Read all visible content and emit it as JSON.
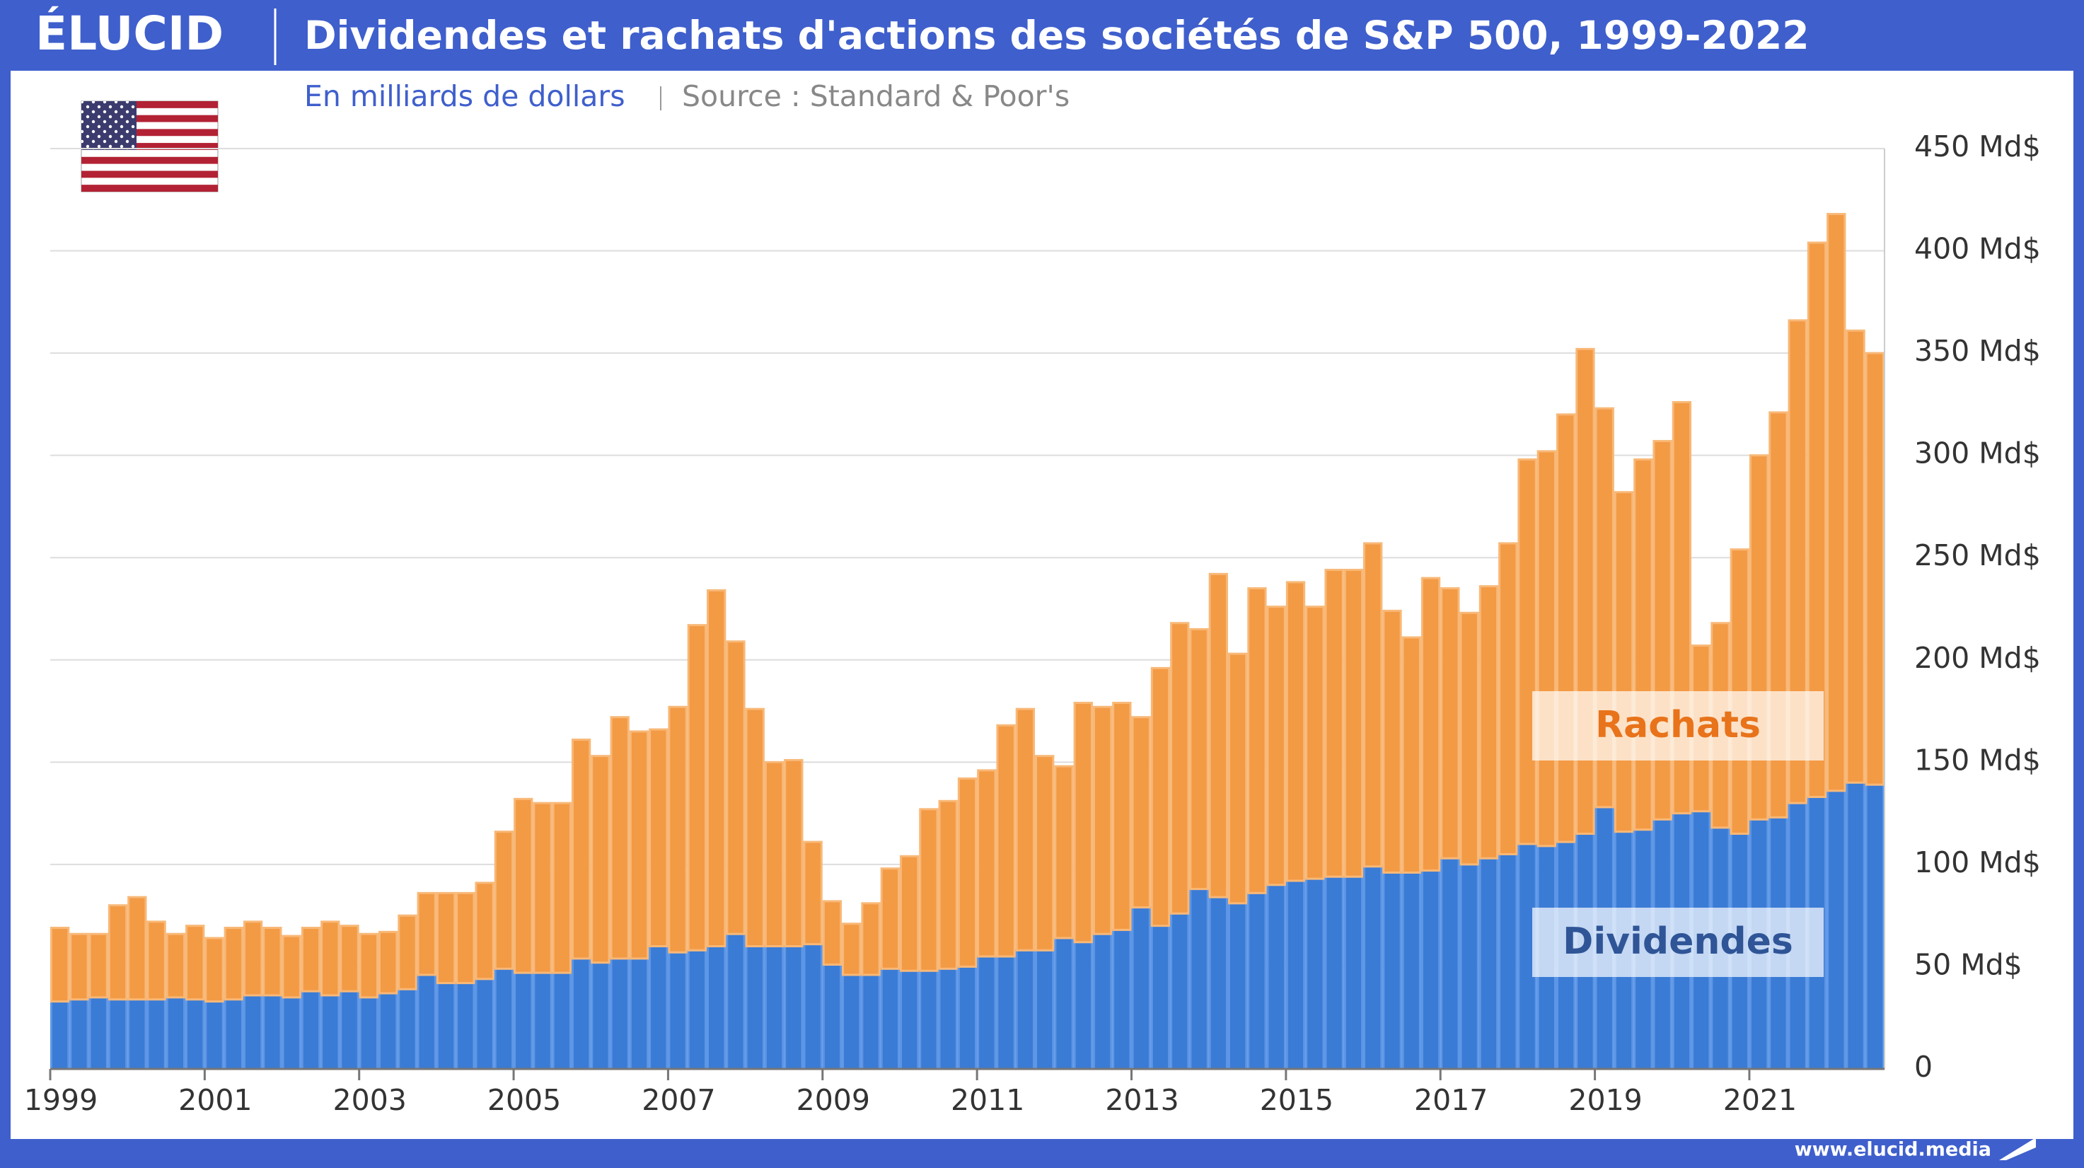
{
  "brand": "ÉLUCID",
  "footer": "www.elucid.media",
  "chart_data": {
    "type": "stacked_bar",
    "title": "Dividendes et rachats d'actions des sociétés de S&P 500, 1999-2022",
    "subtitle": "En milliards de dollars",
    "source": "Source : Standard & Poor's",
    "categories": [
      "1999",
      null,
      null,
      null,
      null,
      null,
      null,
      null,
      "2001",
      null,
      null,
      null,
      null,
      null,
      null,
      null,
      "2003",
      null,
      null,
      null,
      null,
      null,
      null,
      null,
      "2005",
      null,
      null,
      null,
      null,
      null,
      null,
      null,
      "2007",
      null,
      null,
      null,
      null,
      null,
      null,
      null,
      "2009",
      null,
      null,
      null,
      null,
      null,
      null,
      null,
      "2011",
      null,
      null,
      null,
      null,
      null,
      null,
      null,
      "2013",
      null,
      null,
      null,
      null,
      null,
      null,
      null,
      "2015",
      null,
      null,
      null,
      null,
      null,
      null,
      null,
      "2017",
      null,
      null,
      null,
      null,
      null,
      null,
      null,
      "2019",
      null,
      null,
      null,
      null,
      null,
      null,
      null,
      "2021",
      null,
      null,
      null,
      null,
      null,
      null
    ],
    "series": [
      {
        "name": "Dividendes",
        "color": "#3a7bd5",
        "values": [
          33,
          34,
          35,
          34,
          34,
          34,
          35,
          34,
          33,
          34,
          36,
          36,
          35,
          38,
          36,
          38,
          35,
          37,
          39,
          46,
          42,
          42,
          44,
          49,
          47,
          47,
          47,
          54,
          52,
          54,
          54,
          60,
          57,
          58,
          60,
          66,
          60,
          60,
          60,
          61,
          51,
          46,
          46,
          49,
          48,
          48,
          49,
          50,
          55,
          55,
          58,
          58,
          64,
          62,
          66,
          68,
          79,
          70,
          76,
          88,
          84,
          81,
          86,
          90,
          92,
          93,
          94,
          94,
          99,
          96,
          96,
          97,
          103,
          100,
          103,
          105,
          110,
          109,
          111,
          115,
          128,
          116,
          117,
          122,
          125,
          126,
          118,
          115,
          122,
          123,
          130,
          133,
          136,
          140,
          139
        ]
      },
      {
        "name": "Rachats",
        "color": "#f39a45",
        "values": [
          36,
          32,
          31,
          46,
          50,
          38,
          31,
          36,
          31,
          35,
          36,
          33,
          30,
          31,
          36,
          32,
          31,
          30,
          36,
          40,
          44,
          44,
          47,
          67,
          85,
          83,
          83,
          107,
          101,
          118,
          111,
          106,
          120,
          159,
          174,
          143,
          116,
          90,
          91,
          50,
          31,
          25,
          35,
          49,
          56,
          79,
          82,
          92,
          91,
          113,
          118,
          95,
          84,
          117,
          111,
          111,
          93,
          126,
          142,
          127,
          158,
          122,
          149,
          136,
          146,
          133,
          150,
          150,
          158,
          128,
          115,
          143,
          132,
          123,
          133,
          152,
          188,
          193,
          209,
          237,
          195,
          166,
          181,
          185,
          201,
          81,
          100,
          139,
          178,
          198,
          236,
          271,
          282,
          221,
          211
        ]
      }
    ],
    "ylim": [
      0,
      450
    ],
    "yticks": [
      0,
      {
        "value": 50,
        "label": "50 Md$"
      },
      {
        "value": 100,
        "label": "100 Md$"
      },
      {
        "value": 150,
        "label": "150 Md$"
      },
      {
        "value": 200,
        "label": "200 Md$"
      },
      {
        "value": 250,
        "label": "250 Md$"
      },
      {
        "value": 300,
        "label": "300 Md$"
      },
      {
        "value": 350,
        "label": "350 Md$"
      },
      {
        "value": 400,
        "label": "400 Md$"
      },
      {
        "value": 450,
        "label": "450 Md$"
      }
    ],
    "grid": true
  }
}
